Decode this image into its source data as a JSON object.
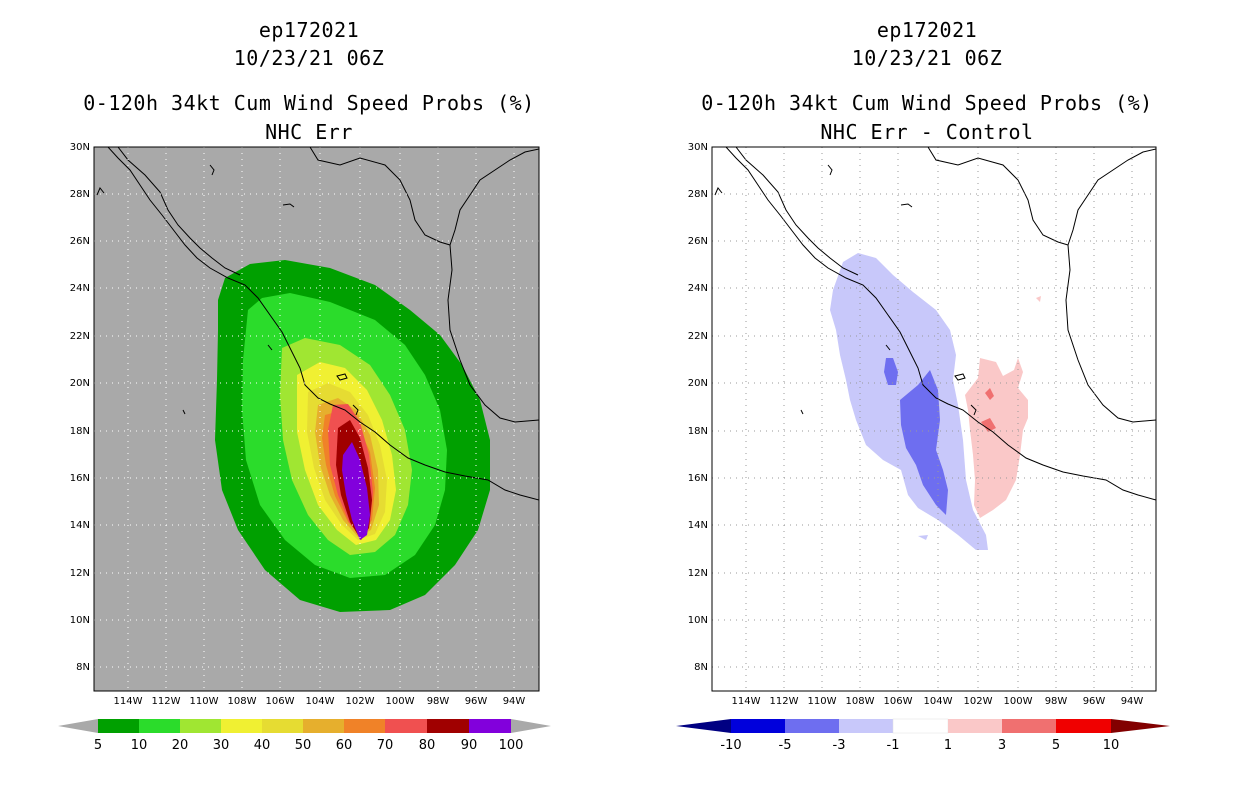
{
  "left_panel": {
    "title_line1": "ep172021",
    "title_line2": "10/23/21 06Z",
    "title_line3": "0-120h 34kt Cum Wind Speed Probs (%)",
    "title_line4": "NHC Err",
    "background_color": "#a9a9a9",
    "colorbar": {
      "labels": [
        "5",
        "10",
        "20",
        "30",
        "40",
        "50",
        "60",
        "70",
        "80",
        "90",
        "100"
      ],
      "colors": [
        "#00a000",
        "#2bdc2b",
        "#a0e632",
        "#f0f032",
        "#e6dc32",
        "#e6af2d",
        "#f08228",
        "#f05050",
        "#a00000",
        "#8200dc"
      ],
      "end_arrow_color": "#a9a9a9"
    }
  },
  "right_panel": {
    "title_line1": "ep172021",
    "title_line2": "10/23/21 06Z",
    "title_line3": "0-120h 34kt Cum Wind Speed Probs (%)",
    "title_line4": "NHC Err - Control",
    "background_color": "#ffffff",
    "colorbar": {
      "labels": [
        "-10",
        "-5",
        "-3",
        "-1",
        "1",
        "3",
        "5",
        "10"
      ],
      "colors": [
        "#0000dc",
        "#6e6ef0",
        "#c8c8fa",
        "#ffffff",
        "#fac8c8",
        "#f07070",
        "#f00000"
      ],
      "low_arrow_color": "#000082",
      "high_arrow_color": "#820000"
    }
  },
  "map": {
    "lat_labels": [
      "30N",
      "28N",
      "26N",
      "24N",
      "22N",
      "20N",
      "18N",
      "16N",
      "14N",
      "12N",
      "10N",
      "8N"
    ],
    "lon_labels": [
      "114W",
      "112W",
      "110W",
      "108W",
      "106W",
      "104W",
      "102W",
      "100W",
      "98W",
      "96W",
      "94W"
    ]
  }
}
